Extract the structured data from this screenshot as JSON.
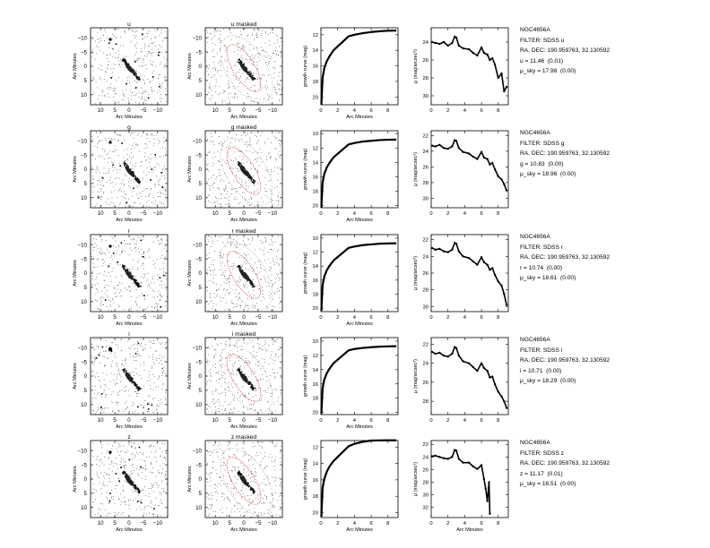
{
  "figure": {
    "object": "NGC4656A",
    "ra_dec_line": "RA, DEC: 190.959763, 32.130592",
    "arc_minutes_label": "Arc Minutes",
    "growth_ylabel": "growth curve (mag)",
    "profile_ylabel": "μ (mag/arcsec²)",
    "image_ticks": [
      "−10",
      "−5",
      "0",
      "5",
      "10"
    ],
    "image_xticks": [
      "10",
      "5",
      "0",
      "−5",
      "−10"
    ]
  },
  "chart_data": [
    {
      "type": "panel_row",
      "band": "u",
      "image_title": "u",
      "masked_title": "u masked",
      "info": [
        "NGC4656A",
        "FILTER: SDSS u",
        "RA, DEC: 190.959763, 32.130592",
        "u = 11.46  (0.01)",
        "μ_sky = 17.98  (0.00)"
      ],
      "growth": {
        "type": "line",
        "xlabel": "Arc Minutes",
        "ylabel": "growth curve (mag)",
        "xlim": [
          0,
          9.2
        ],
        "ylim": [
          21,
          11.1
        ],
        "xticks": [
          0,
          2,
          4,
          6,
          8
        ],
        "yticks": [
          12,
          14,
          16,
          18,
          20
        ],
        "x": [
          0.05,
          0.2,
          0.4,
          0.7,
          1.0,
          1.5,
          2.0,
          2.5,
          3.0,
          3.3,
          4.0,
          5.0,
          6.0,
          7.0,
          8.0,
          9.0
        ],
        "y": [
          21.0,
          17.5,
          16.3,
          15.4,
          14.8,
          14.0,
          13.5,
          13.0,
          12.5,
          12.2,
          12.0,
          11.8,
          11.65,
          11.55,
          11.48,
          11.46
        ]
      },
      "profile": {
        "type": "line",
        "xlabel": "",
        "ylabel": "μ (mag/arcsec²)",
        "xlim": [
          0,
          9.2
        ],
        "ylim": [
          31,
          22.4
        ],
        "xticks": [
          0,
          2,
          4,
          6,
          8
        ],
        "yticks": [
          24,
          26,
          28,
          30
        ],
        "x": [
          0.1,
          0.5,
          1.0,
          1.5,
          2.0,
          2.5,
          2.8,
          3.0,
          3.3,
          3.8,
          4.5,
          5.0,
          5.5,
          6.0,
          6.3,
          6.7,
          7.0,
          7.3,
          7.6,
          8.0,
          8.4,
          8.7,
          9.0
        ],
        "y": [
          24.0,
          24.1,
          24.2,
          24.0,
          24.4,
          24.1,
          23.4,
          23.5,
          24.4,
          24.7,
          24.8,
          25.2,
          25.5,
          24.6,
          25.2,
          25.4,
          26.0,
          25.8,
          26.5,
          28.0,
          27.5,
          29.5,
          29.0
        ]
      }
    },
    {
      "type": "panel_row",
      "band": "g",
      "image_title": "g",
      "masked_title": "g masked",
      "info": [
        "NGC4656A",
        "FILTER: SDSS g",
        "RA, DEC: 190.959763, 32.130592",
        "g = 10.83  (0.00)",
        "μ_sky = 18.96  (0.00)"
      ],
      "growth": {
        "type": "line",
        "xlabel": "Arc Minutes",
        "ylabel": "growth curve (mag)",
        "xlim": [
          0,
          9.2
        ],
        "ylim": [
          20.3,
          9.6
        ],
        "xticks": [
          0,
          2,
          4,
          6,
          8
        ],
        "yticks": [
          10,
          12,
          14,
          16,
          18,
          20
        ],
        "x": [
          0.05,
          0.2,
          0.4,
          0.7,
          1.0,
          1.5,
          2.0,
          2.5,
          3.0,
          3.3,
          4.0,
          5.0,
          6.0,
          7.0,
          8.0,
          9.0
        ],
        "y": [
          20.3,
          16.8,
          15.6,
          14.7,
          14.1,
          13.3,
          12.8,
          12.3,
          11.8,
          11.5,
          11.3,
          11.1,
          11.0,
          10.9,
          10.85,
          10.83
        ]
      },
      "profile": {
        "type": "line",
        "xlabel": "",
        "ylabel": "μ (mag/arcsec²)",
        "xlim": [
          0,
          9.2
        ],
        "ylim": [
          31.2,
          21.4
        ],
        "xticks": [
          0,
          2,
          4,
          6,
          8
        ],
        "yticks": [
          22,
          24,
          26,
          28,
          30
        ],
        "x": [
          0.1,
          0.5,
          1.0,
          1.5,
          2.0,
          2.5,
          2.8,
          3.0,
          3.3,
          3.8,
          4.5,
          5.0,
          5.5,
          6.0,
          6.3,
          6.7,
          7.0,
          7.3,
          7.6,
          8.0,
          8.4,
          8.7,
          9.0
        ],
        "y": [
          23.3,
          23.4,
          23.2,
          23.6,
          23.7,
          23.4,
          22.6,
          22.7,
          23.6,
          24.1,
          24.3,
          24.7,
          25.0,
          24.1,
          24.8,
          25.0,
          25.7,
          25.5,
          26.3,
          27.2,
          27.6,
          28.2,
          29.0
        ]
      }
    },
    {
      "type": "panel_row",
      "band": "r",
      "image_title": "r",
      "masked_title": "r masked",
      "info": [
        "NGC4656A",
        "FILTER: SDSS r",
        "RA, DEC: 190.959763, 32.130592",
        "r = 10.74  (0.00)",
        "μ_sky = 18.61  (0.00)"
      ],
      "growth": {
        "type": "line",
        "xlabel": "Arc Minutes",
        "ylabel": "growth curve (mag)",
        "xlim": [
          0,
          9.2
        ],
        "ylim": [
          20.5,
          9.5
        ],
        "xticks": [
          0,
          2,
          4,
          6,
          8
        ],
        "yticks": [
          10,
          12,
          14,
          16,
          18,
          20
        ],
        "x": [
          0.05,
          0.2,
          0.4,
          0.7,
          1.0,
          1.5,
          2.0,
          2.5,
          3.0,
          3.3,
          4.0,
          5.0,
          6.0,
          7.0,
          8.0,
          9.0
        ],
        "y": [
          20.4,
          16.7,
          15.5,
          14.6,
          14.0,
          13.2,
          12.7,
          12.2,
          11.7,
          11.4,
          11.2,
          11.0,
          10.9,
          10.8,
          10.76,
          10.74
        ]
      },
      "profile": {
        "type": "line",
        "xlabel": "",
        "ylabel": "μ (mag/arcsec²)",
        "xlim": [
          0,
          9.2
        ],
        "ylim": [
          30.6,
          21.4
        ],
        "xticks": [
          0,
          2,
          4,
          6,
          8
        ],
        "yticks": [
          22,
          24,
          26,
          28,
          30
        ],
        "x": [
          0.1,
          0.5,
          1.0,
          1.5,
          2.0,
          2.5,
          2.8,
          3.0,
          3.3,
          3.8,
          4.5,
          5.0,
          5.5,
          6.0,
          6.3,
          6.7,
          7.0,
          7.3,
          7.6,
          8.0,
          8.4,
          8.7,
          9.0
        ],
        "y": [
          23.0,
          23.2,
          23.1,
          23.4,
          23.5,
          23.2,
          22.4,
          22.5,
          23.4,
          24.0,
          24.2,
          24.6,
          25.0,
          24.1,
          24.7,
          25.0,
          25.6,
          25.4,
          26.2,
          27.0,
          27.5,
          28.5,
          29.8
        ]
      }
    },
    {
      "type": "panel_row",
      "band": "i",
      "image_title": "i",
      "masked_title": "i masked",
      "info": [
        "NGC4656A",
        "FILTER: SDSS i",
        "RA, DEC: 190.959763, 32.130592",
        "i = 10.71  (0.00)",
        "μ_sky = 18.29  (0.00)"
      ],
      "growth": {
        "type": "line",
        "xlabel": "Arc Minutes",
        "ylabel": "growth curve (mag)",
        "xlim": [
          0,
          9.2
        ],
        "ylim": [
          20.3,
          9.5
        ],
        "xticks": [
          0,
          2,
          4,
          6,
          8
        ],
        "yticks": [
          10,
          12,
          14,
          16,
          18,
          20
        ],
        "x": [
          0.05,
          0.2,
          0.4,
          0.7,
          1.0,
          1.5,
          2.0,
          2.5,
          3.0,
          3.3,
          4.0,
          5.0,
          6.0,
          7.0,
          8.0,
          9.0
        ],
        "y": [
          20.2,
          16.6,
          15.4,
          14.5,
          13.9,
          13.1,
          12.6,
          12.1,
          11.6,
          11.3,
          11.1,
          10.95,
          10.85,
          10.77,
          10.73,
          10.71
        ]
      },
      "profile": {
        "type": "line",
        "xlabel": "",
        "ylabel": "μ (mag/arcsec²)",
        "xlim": [
          0,
          9.2
        ],
        "ylim": [
          29.4,
          21.3
        ],
        "xticks": [
          0,
          2,
          4,
          6,
          8
        ],
        "yticks": [
          22,
          24,
          26,
          28
        ],
        "x": [
          0.1,
          0.5,
          1.0,
          1.5,
          2.0,
          2.5,
          2.8,
          3.0,
          3.3,
          3.8,
          4.5,
          5.0,
          5.5,
          6.0,
          6.3,
          6.7,
          7.0,
          7.3,
          7.6,
          8.0,
          8.4,
          8.7,
          9.0
        ],
        "y": [
          22.8,
          23.0,
          22.9,
          23.2,
          23.3,
          23.0,
          22.3,
          22.4,
          23.2,
          23.8,
          24.0,
          24.4,
          24.8,
          24.0,
          24.5,
          24.8,
          25.5,
          25.4,
          26.2,
          27.0,
          27.5,
          28.0,
          28.7
        ]
      }
    },
    {
      "type": "panel_row",
      "band": "z",
      "image_title": "z",
      "masked_title": "z masked",
      "info": [
        "NGC4656A",
        "FILTER: SDSS z",
        "RA, DEC: 190.959763, 32.130592",
        "z = 11.17  (0.01)",
        "μ_sky = 16.51  (0.00)"
      ],
      "growth": {
        "type": "line",
        "xlabel": "Arc Minutes",
        "ylabel": "growth curve (mag)",
        "xlim": [
          0,
          9.2
        ],
        "ylim": [
          20.6,
          11.2
        ],
        "xticks": [
          0,
          2,
          4,
          6,
          8
        ],
        "yticks": [
          12,
          14,
          16,
          18,
          20
        ],
        "x": [
          0.05,
          0.2,
          0.4,
          0.7,
          1.0,
          1.5,
          2.0,
          2.5,
          3.0,
          3.3,
          4.0,
          5.0,
          6.0,
          7.0,
          8.0,
          9.0
        ],
        "y": [
          20.5,
          17.0,
          15.9,
          15.0,
          14.4,
          13.7,
          13.2,
          12.7,
          12.2,
          11.9,
          11.6,
          11.35,
          11.2,
          11.18,
          11.17,
          11.17
        ]
      },
      "profile": {
        "type": "line",
        "xlabel": "",
        "ylabel": "μ (mag/arcsec²)",
        "xlim": [
          0,
          9.2
        ],
        "ylim": [
          33.6,
          21.4
        ],
        "xticks": [
          0,
          2,
          4,
          6,
          8
        ],
        "yticks": [
          22,
          24,
          26,
          28,
          30,
          32
        ],
        "x": [
          0.1,
          0.5,
          1.0,
          1.5,
          2.0,
          2.5,
          2.8,
          3.0,
          3.3,
          3.8,
          4.5,
          5.0,
          5.5,
          6.0,
          6.3,
          6.5,
          6.7,
          6.9,
          7.0
        ],
        "y": [
          23.9,
          23.8,
          24.0,
          24.2,
          24.3,
          24.0,
          22.9,
          23.0,
          24.3,
          24.9,
          24.9,
          25.5,
          25.9,
          25.3,
          27.5,
          29.0,
          31.0,
          28.0,
          33.0
        ]
      }
    }
  ]
}
